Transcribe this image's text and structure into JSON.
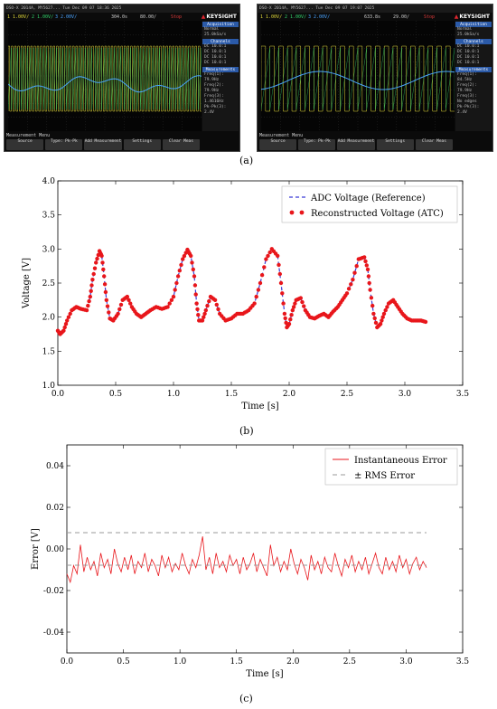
{
  "panel_a": {
    "label": "(a)",
    "scopes": [
      {
        "title": "DSO-X 2014A, MY5627... Tue Dec 09 07 18:36 2025",
        "ch1": "1 1.00V/",
        "ch2": "2 1.00V/",
        "ch3": "3 2.00V/",
        "tdelay": "304.0s",
        "timebase": "80.00/",
        "status": "Stop",
        "brand": "KEYSIGHT",
        "side": {
          "acq_header": "Acquisition",
          "acq_mode": "Normal",
          "acq_rate": "25.0kSa/s",
          "chan_header": "Channels",
          "chan_rows": [
            "DC 10.0:1",
            "DC 10.0:1",
            "DC 10.0:1",
            "DC 10.0:1"
          ],
          "meas_header": "Measurements",
          "meas_rows": [
            "Freq(1):",
            "79.9Hz",
            "Freq(2):",
            "79.9Hz",
            "Freq(3):",
            "1.4616Hz",
            "Pk-Pk(3):",
            "2.4V"
          ]
        },
        "menu": "Measurement Menu",
        "softkeys": [
          "Source",
          "Type: Pk-Pk",
          "Add Measurement",
          "Settings",
          "Clear Meas"
        ]
      },
      {
        "title": "DSO-X 2014A, MY5627... Tue Dec 09 07 19:07 2025",
        "ch1": "1 1.00V/",
        "ch2": "2 1.00V/",
        "ch3": "3 2.00V/",
        "tdelay": "633.8s",
        "timebase": "29.00/",
        "status": "Stop",
        "brand": "KEYSIGHT",
        "side": {
          "acq_header": "Acquisition",
          "acq_mode": "Normal",
          "acq_rate": "25.0kSa/s",
          "chan_header": "Channels",
          "chan_rows": [
            "DC 10.0:1",
            "DC 10.0:1",
            "DC 10.0:1",
            "DC 10.0:1"
          ],
          "meas_header": "Measurements",
          "meas_rows": [
            "Freq(1):",
            "84.5Hz",
            "Freq(2):",
            "79.9Hz",
            "Freq(3):",
            "No edges",
            "Pk-Pk(3):",
            "2.4V"
          ]
        },
        "menu": "Measurement Menu",
        "softkeys": [
          "Source",
          "Type: Pk-Pk",
          "Add Measurement",
          "Settings",
          "Clear Meas"
        ]
      }
    ],
    "colors": {
      "ch1": "#e0d93a",
      "ch2": "#33d36b",
      "ch3": "#4aa4ff"
    }
  },
  "panel_b_label": "(b)",
  "panel_c_label": "(c)",
  "chart_data": [
    {
      "type": "line",
      "xlabel": "Time [s]",
      "ylabel": "Voltage [V]",
      "xlim": [
        0,
        3.5
      ],
      "ylim": [
        1.0,
        4.0
      ],
      "xticks": [
        0,
        0.5,
        1.0,
        1.5,
        2.0,
        2.5,
        3.0,
        3.5
      ],
      "yticks": [
        1.0,
        1.5,
        2.0,
        2.5,
        3.0,
        3.5,
        4.0
      ],
      "grid": false,
      "legend": "top-right",
      "series": [
        {
          "name": "ADC Voltage (Reference)",
          "style": "dashed",
          "color": "#3a3ad6",
          "x": [
            0.0,
            0.02,
            0.05,
            0.08,
            0.12,
            0.16,
            0.2,
            0.25,
            0.28,
            0.3,
            0.33,
            0.36,
            0.38,
            0.4,
            0.42,
            0.45,
            0.48,
            0.52,
            0.56,
            0.6,
            0.64,
            0.68,
            0.72,
            0.76,
            0.8,
            0.85,
            0.9,
            0.95,
            1.0,
            1.04,
            1.08,
            1.12,
            1.15,
            1.18,
            1.2,
            1.22,
            1.25,
            1.28,
            1.32,
            1.36,
            1.4,
            1.45,
            1.5,
            1.55,
            1.6,
            1.65,
            1.7,
            1.75,
            1.8,
            1.85,
            1.9,
            1.93,
            1.96,
            1.98,
            2.0,
            2.03,
            2.06,
            2.1,
            2.14,
            2.18,
            2.22,
            2.26,
            2.3,
            2.34,
            2.38,
            2.42,
            2.46,
            2.5,
            2.55,
            2.6,
            2.65,
            2.68,
            2.7,
            2.73,
            2.76,
            2.79,
            2.82,
            2.86,
            2.9,
            2.94,
            2.98,
            3.02,
            3.06,
            3.1,
            3.14,
            3.18
          ],
          "y": [
            1.8,
            1.75,
            1.8,
            1.95,
            2.1,
            2.15,
            2.12,
            2.1,
            2.3,
            2.55,
            2.8,
            2.97,
            2.9,
            2.6,
            2.25,
            1.98,
            1.95,
            2.05,
            2.25,
            2.3,
            2.15,
            2.05,
            2.0,
            2.05,
            2.1,
            2.15,
            2.12,
            2.15,
            2.3,
            2.6,
            2.85,
            2.99,
            2.9,
            2.6,
            2.2,
            1.95,
            1.95,
            2.1,
            2.3,
            2.25,
            2.05,
            1.95,
            1.98,
            2.05,
            2.05,
            2.1,
            2.2,
            2.5,
            2.85,
            3.0,
            2.9,
            2.5,
            2.05,
            1.85,
            1.9,
            2.1,
            2.25,
            2.28,
            2.1,
            2.0,
            1.98,
            2.02,
            2.05,
            2.0,
            2.08,
            2.15,
            2.25,
            2.35,
            2.55,
            2.85,
            2.88,
            2.7,
            2.4,
            2.05,
            1.85,
            1.9,
            2.05,
            2.2,
            2.25,
            2.15,
            2.05,
            1.98,
            1.95,
            1.95,
            1.95,
            1.93
          ]
        },
        {
          "name": "Reconstructed Voltage (ATC)",
          "style": "dots",
          "color": "#e8161b",
          "x": [
            0.0,
            0.02,
            0.05,
            0.08,
            0.12,
            0.16,
            0.2,
            0.25,
            0.28,
            0.3,
            0.33,
            0.36,
            0.38,
            0.4,
            0.42,
            0.45,
            0.48,
            0.52,
            0.56,
            0.6,
            0.64,
            0.68,
            0.72,
            0.76,
            0.8,
            0.85,
            0.9,
            0.95,
            1.0,
            1.04,
            1.08,
            1.12,
            1.15,
            1.18,
            1.2,
            1.22,
            1.25,
            1.28,
            1.32,
            1.36,
            1.4,
            1.45,
            1.5,
            1.55,
            1.6,
            1.65,
            1.7,
            1.75,
            1.8,
            1.85,
            1.9,
            1.93,
            1.96,
            1.98,
            2.0,
            2.03,
            2.06,
            2.1,
            2.14,
            2.18,
            2.22,
            2.26,
            2.3,
            2.34,
            2.38,
            2.42,
            2.46,
            2.5,
            2.55,
            2.6,
            2.65,
            2.68,
            2.7,
            2.73,
            2.76,
            2.79,
            2.82,
            2.86,
            2.9,
            2.94,
            2.98,
            3.02,
            3.06,
            3.1,
            3.14,
            3.18
          ],
          "y": [
            1.8,
            1.75,
            1.8,
            1.95,
            2.1,
            2.15,
            2.12,
            2.1,
            2.3,
            2.55,
            2.8,
            2.97,
            2.9,
            2.6,
            2.25,
            1.98,
            1.95,
            2.05,
            2.25,
            2.3,
            2.15,
            2.05,
            2.0,
            2.05,
            2.1,
            2.15,
            2.12,
            2.15,
            2.3,
            2.6,
            2.85,
            2.99,
            2.9,
            2.6,
            2.2,
            1.95,
            1.95,
            2.1,
            2.3,
            2.25,
            2.05,
            1.95,
            1.98,
            2.05,
            2.05,
            2.1,
            2.2,
            2.5,
            2.85,
            3.0,
            2.9,
            2.5,
            2.05,
            1.85,
            1.9,
            2.1,
            2.25,
            2.28,
            2.1,
            2.0,
            1.98,
            2.02,
            2.05,
            2.0,
            2.08,
            2.15,
            2.25,
            2.35,
            2.55,
            2.85,
            2.88,
            2.7,
            2.4,
            2.05,
            1.85,
            1.9,
            2.05,
            2.2,
            2.25,
            2.15,
            2.05,
            1.98,
            1.95,
            1.95,
            1.95,
            1.93
          ]
        }
      ]
    },
    {
      "type": "line",
      "xlabel": "Time [s]",
      "ylabel": "Error [V]",
      "xlim": [
        0,
        3.5
      ],
      "ylim": [
        -0.05,
        0.05
      ],
      "xticks": [
        0,
        0.5,
        1.0,
        1.5,
        2.0,
        2.5,
        3.0,
        3.5
      ],
      "yticks": [
        -0.04,
        -0.02,
        0.0,
        0.02,
        0.04
      ],
      "grid": false,
      "legend": "top-right",
      "rms_error": 0.0078,
      "series": [
        {
          "name": "Instantaneous Error",
          "style": "solid",
          "color": "#e8161b",
          "x": [
            0.0,
            0.03,
            0.06,
            0.09,
            0.12,
            0.15,
            0.18,
            0.21,
            0.24,
            0.27,
            0.3,
            0.33,
            0.36,
            0.39,
            0.42,
            0.45,
            0.48,
            0.51,
            0.54,
            0.57,
            0.6,
            0.63,
            0.66,
            0.69,
            0.72,
            0.75,
            0.78,
            0.81,
            0.84,
            0.87,
            0.9,
            0.93,
            0.96,
            0.99,
            1.02,
            1.05,
            1.08,
            1.11,
            1.14,
            1.17,
            1.2,
            1.23,
            1.26,
            1.29,
            1.32,
            1.35,
            1.38,
            1.41,
            1.44,
            1.47,
            1.5,
            1.53,
            1.56,
            1.59,
            1.62,
            1.65,
            1.68,
            1.71,
            1.74,
            1.77,
            1.8,
            1.83,
            1.86,
            1.89,
            1.92,
            1.95,
            1.98,
            2.01,
            2.04,
            2.07,
            2.1,
            2.13,
            2.16,
            2.19,
            2.22,
            2.25,
            2.28,
            2.31,
            2.34,
            2.37,
            2.4,
            2.43,
            2.46,
            2.49,
            2.52,
            2.55,
            2.58,
            2.61,
            2.64,
            2.67,
            2.7,
            2.73,
            2.76,
            2.79,
            2.82,
            2.85,
            2.88,
            2.91,
            2.94,
            2.97,
            3.0,
            3.03,
            3.06,
            3.09,
            3.12,
            3.15,
            3.18
          ],
          "y": [
            -0.012,
            -0.016,
            -0.008,
            -0.012,
            0.002,
            -0.011,
            -0.004,
            -0.01,
            -0.006,
            -0.013,
            -0.002,
            -0.009,
            -0.005,
            -0.012,
            0.0,
            -0.007,
            -0.011,
            -0.004,
            -0.01,
            -0.003,
            -0.012,
            -0.006,
            -0.009,
            -0.002,
            -0.011,
            -0.005,
            -0.008,
            -0.013,
            -0.003,
            -0.009,
            -0.004,
            -0.011,
            -0.007,
            -0.01,
            -0.002,
            -0.008,
            -0.012,
            -0.005,
            -0.009,
            -0.003,
            0.006,
            -0.01,
            -0.004,
            -0.012,
            -0.002,
            -0.009,
            -0.006,
            -0.011,
            -0.003,
            -0.008,
            -0.005,
            -0.012,
            -0.004,
            -0.01,
            -0.007,
            -0.002,
            -0.011,
            -0.005,
            -0.009,
            -0.013,
            0.002,
            -0.008,
            -0.004,
            -0.011,
            -0.006,
            -0.01,
            0.0,
            -0.007,
            -0.012,
            -0.005,
            -0.009,
            -0.015,
            -0.003,
            -0.01,
            -0.006,
            -0.012,
            -0.004,
            -0.009,
            -0.011,
            -0.002,
            -0.008,
            -0.013,
            -0.005,
            -0.009,
            -0.003,
            -0.011,
            -0.006,
            -0.01,
            -0.004,
            -0.012,
            -0.007,
            -0.002,
            -0.009,
            -0.012,
            -0.004,
            -0.01,
            -0.006,
            -0.011,
            -0.003,
            -0.009,
            -0.005,
            -0.012,
            -0.007,
            -0.004,
            -0.01,
            -0.006,
            -0.009
          ]
        },
        {
          "name": "± RMS Error",
          "style": "dashed",
          "color": "#999999"
        }
      ]
    }
  ]
}
